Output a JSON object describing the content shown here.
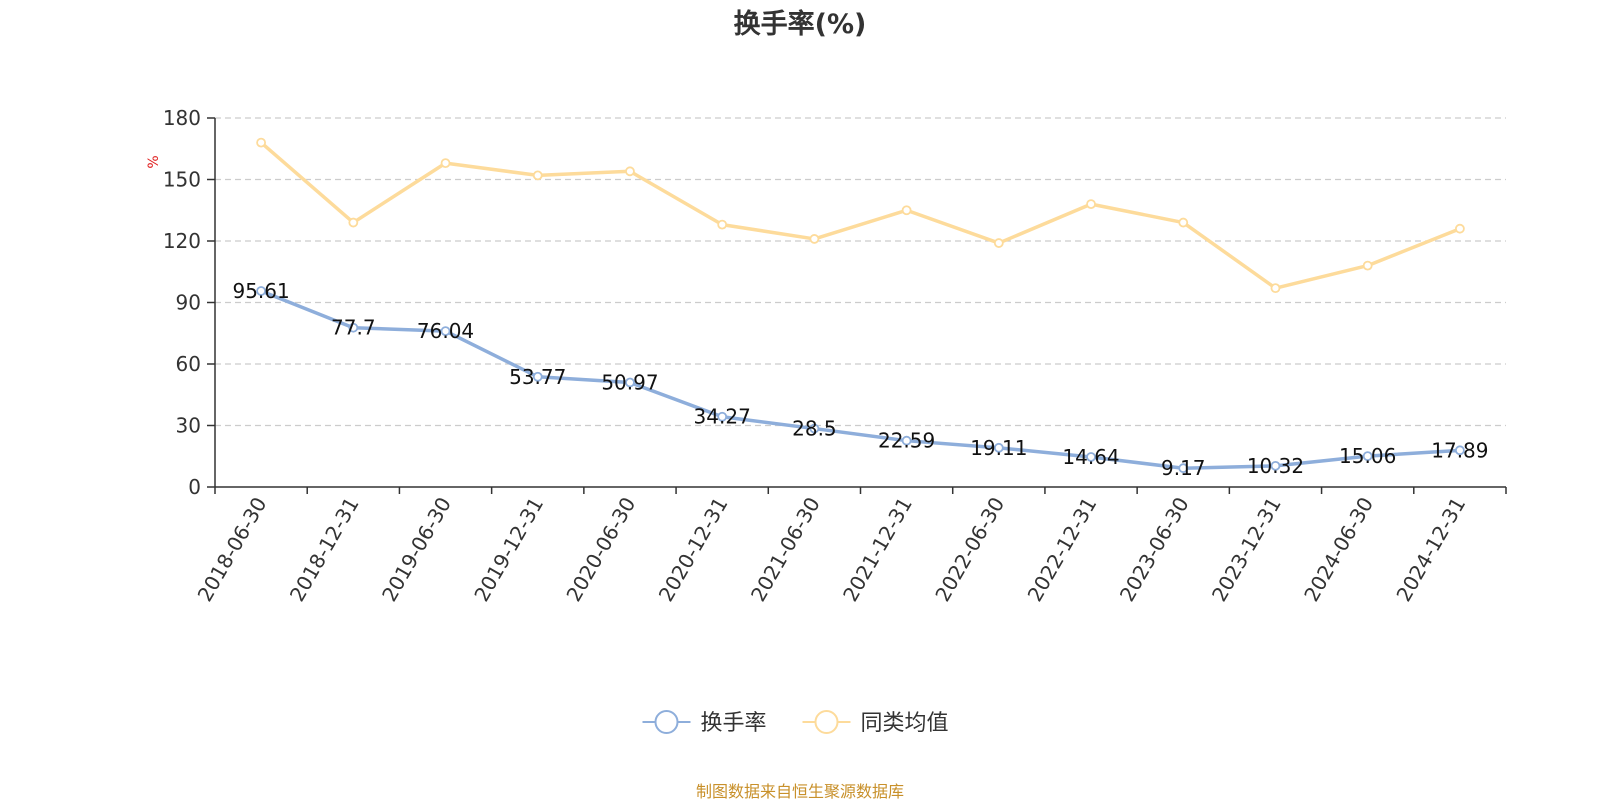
{
  "chart_data": {
    "type": "line",
    "title": "换手率(%)",
    "unit_label": "%",
    "categories": [
      "2018-06-30",
      "2018-12-31",
      "2019-06-30",
      "2019-12-31",
      "2020-06-30",
      "2020-12-31",
      "2021-06-30",
      "2021-12-31",
      "2022-06-30",
      "2022-12-31",
      "2023-06-30",
      "2023-12-31",
      "2024-06-30",
      "2024-12-31"
    ],
    "series": [
      {
        "name": "换手率",
        "color": "#8eaedb",
        "show_labels": true,
        "values": [
          95.61,
          77.7,
          76.04,
          53.77,
          50.97,
          34.27,
          28.5,
          22.59,
          19.11,
          14.64,
          9.17,
          10.32,
          15.06,
          17.89
        ],
        "labels": [
          "95.61",
          "77.7",
          "76.04",
          "53.77",
          "50.97",
          "34.27",
          "28.5",
          "22.59",
          "19.11",
          "14.64",
          "9.17",
          "10.32",
          "15.06",
          "17.89"
        ]
      },
      {
        "name": "同类均值",
        "color": "#fddb9b",
        "show_labels": false,
        "values": [
          168,
          129,
          158,
          152,
          154,
          128,
          121,
          135,
          119,
          138,
          129,
          97,
          108,
          126
        ]
      }
    ],
    "yticks": [
      0,
      30,
      60,
      90,
      120,
      150,
      180
    ],
    "ylim": [
      0,
      180
    ],
    "grid": true,
    "legend_position": "bottom-center"
  },
  "source_text": "制图数据来自恒生聚源数据库",
  "colors": {
    "unit_label": "#e02020",
    "source_text": "#c8902a",
    "axis": "#333333",
    "grid": "#cccccc"
  }
}
